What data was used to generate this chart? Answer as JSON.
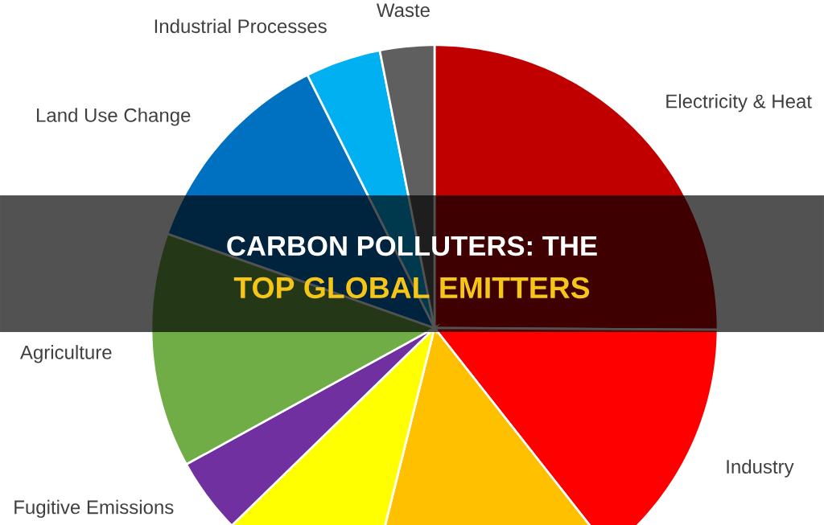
{
  "chart_data": {
    "type": "pie",
    "title": "CARBON POLLUTERS: THE",
    "subtitle": "TOP GLOBAL EMITTERS",
    "categories": [
      "Electricity & Heat",
      "Industry",
      null,
      null,
      "Fugitive Emissions",
      "Agriculture",
      "Land Use Change",
      "Industrial Processes",
      "Waste"
    ],
    "values": [
      25.1,
      14.3,
      14.5,
      8.8,
      4.3,
      13.4,
      12.2,
      4.3,
      3.1
    ],
    "colors": [
      "#c00000",
      "#ff0000",
      "#ffc000",
      "#ffff00",
      "#7030a0",
      "#70ad47",
      "#0070c0",
      "#00b0f0",
      "#5f5f5f"
    ]
  }
}
